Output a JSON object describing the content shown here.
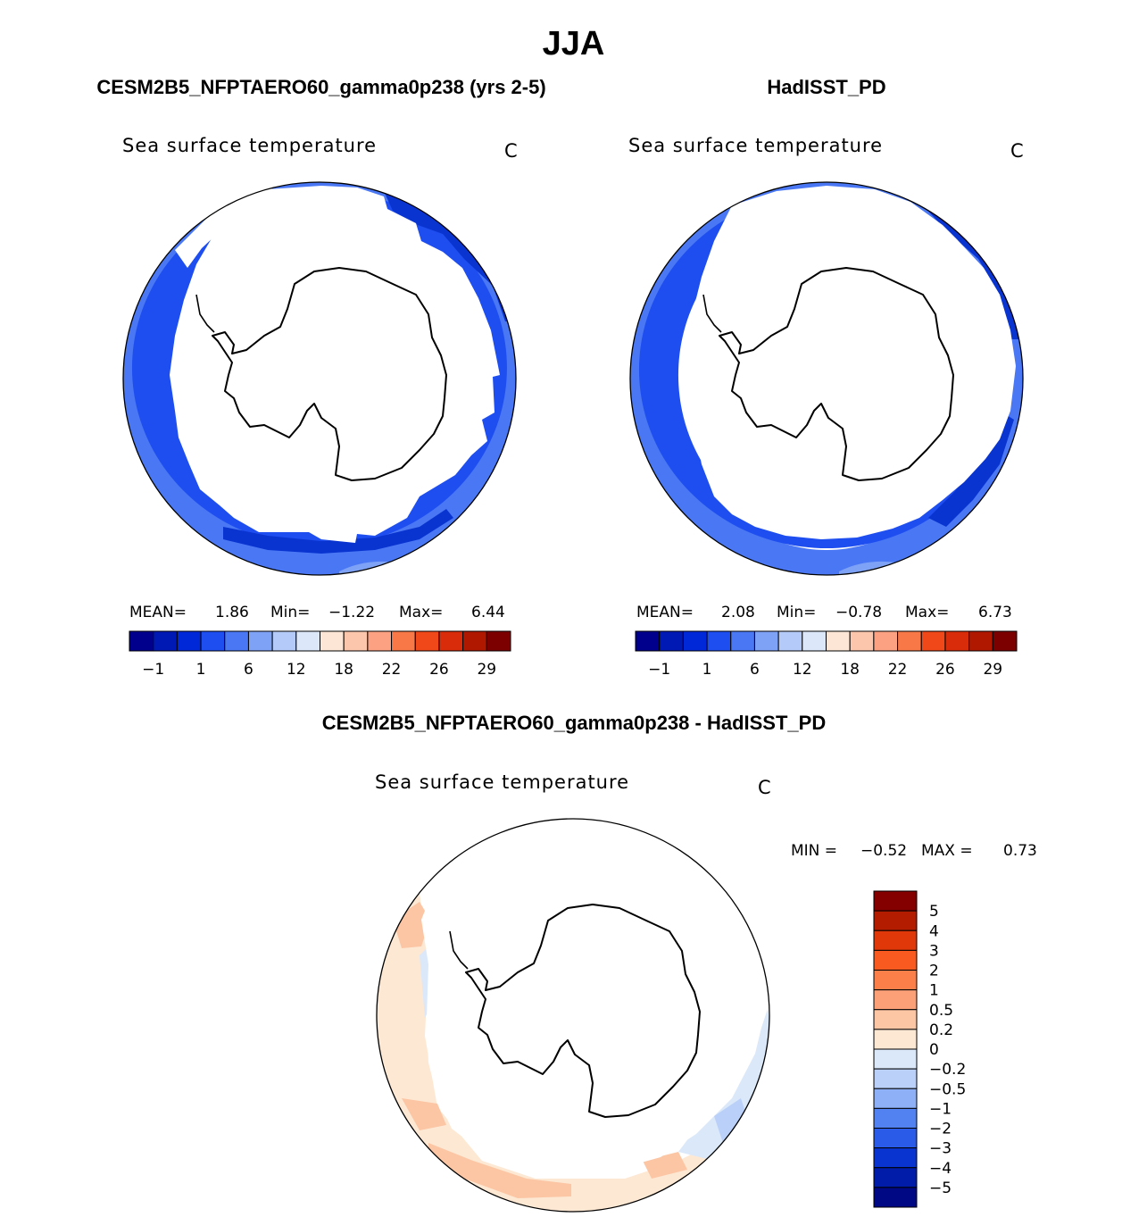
{
  "page": {
    "title": "JJA",
    "left_title": "CESM2B5_NFPTAERO60_gamma0p238 (yrs 2-5)",
    "right_title": "HadISST_PD",
    "diff_title": "CESM2B5_NFPTAERO60_gamma0p238 - HadISST_PD"
  },
  "chart_data": [
    {
      "type": "heatmap",
      "projection": "south-polar-stereographic",
      "title": "CESM2B5_NFPTAERO60_gamma0p238 (yrs 2-5)",
      "variable": "Sea surface temperature",
      "units": "C",
      "stats": {
        "mean_label": "MEAN=",
        "mean": "1.86",
        "min_label": "Min=",
        "min": "−1.22",
        "max_label": "Max=",
        "max": "6.44"
      },
      "colorbar": {
        "orientation": "horizontal",
        "levels": [
          -1,
          1,
          6,
          12,
          18,
          22,
          26,
          29
        ],
        "tick_labels": [
          "−1",
          "1",
          "6",
          "12",
          "18",
          "22",
          "26",
          "29"
        ],
        "colors": [
          "#00008c",
          "#0018b4",
          "#0028d8",
          "#1e4ef0",
          "#4a78f4",
          "#7ea2f6",
          "#b4caf8",
          "#dce8fa",
          "#fde6d6",
          "#fcc6ac",
          "#fca282",
          "#f87848",
          "#f04818",
          "#d82c0a",
          "#b01800",
          "#7c0000"
        ]
      }
    },
    {
      "type": "heatmap",
      "projection": "south-polar-stereographic",
      "title": "HadISST_PD",
      "variable": "Sea surface temperature",
      "units": "C",
      "stats": {
        "mean_label": "MEAN=",
        "mean": "2.08",
        "min_label": "Min=",
        "min": "−0.78",
        "max_label": "Max=",
        "max": "6.73"
      },
      "colorbar": {
        "orientation": "horizontal",
        "levels": [
          -1,
          1,
          6,
          12,
          18,
          22,
          26,
          29
        ],
        "tick_labels": [
          "−1",
          "1",
          "6",
          "12",
          "18",
          "22",
          "26",
          "29"
        ],
        "colors": [
          "#00008c",
          "#0018b4",
          "#0028d8",
          "#1e4ef0",
          "#4a78f4",
          "#7ea2f6",
          "#b4caf8",
          "#dce8fa",
          "#fde6d6",
          "#fcc6ac",
          "#fca282",
          "#f87848",
          "#f04818",
          "#d82c0a",
          "#b01800",
          "#7c0000"
        ]
      }
    },
    {
      "type": "heatmap",
      "projection": "south-polar-stereographic",
      "title": "CESM2B5_NFPTAERO60_gamma0p238 - HadISST_PD",
      "variable": "Sea surface temperature",
      "units": "C",
      "stats": {
        "min_label": "MIN =",
        "min": "−0.52",
        "max_label": "MAX =",
        "max": "0.73"
      },
      "colorbar": {
        "orientation": "vertical",
        "levels": [
          5,
          4,
          3,
          2,
          1,
          0.5,
          0.2,
          0,
          -0.2,
          -0.5,
          -1,
          -2,
          -3,
          -4,
          -5
        ],
        "tick_labels": [
          "5",
          "4",
          "3",
          "2",
          "1",
          "0.5",
          "0.2",
          "0",
          "−0.2",
          "−0.5",
          "−1",
          "−2",
          "−3",
          "−4",
          "−5"
        ],
        "colors_top_to_bottom": [
          "#840000",
          "#b41c00",
          "#e03808",
          "#f85a20",
          "#fc7e48",
          "#fca078",
          "#fcc6a4",
          "#fde8d4",
          "#dae8fa",
          "#bad0f8",
          "#8eb0f6",
          "#5282f2",
          "#2a5ae8",
          "#0a34d0",
          "#001ca8",
          "#000884"
        ]
      }
    }
  ]
}
